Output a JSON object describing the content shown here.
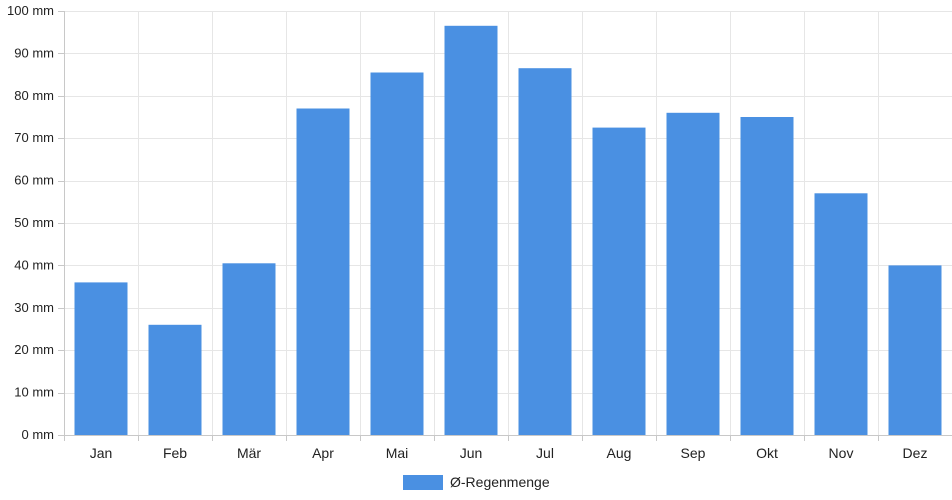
{
  "chart_data": {
    "type": "bar",
    "categories": [
      "Jan",
      "Feb",
      "Mär",
      "Apr",
      "Mai",
      "Jun",
      "Jul",
      "Aug",
      "Sep",
      "Okt",
      "Nov",
      "Dez"
    ],
    "series": [
      {
        "name": "Ø-Regenmenge",
        "color": "#4a90e2",
        "values": [
          36,
          26,
          40.5,
          77,
          85.5,
          96.5,
          86.5,
          72.5,
          76,
          75,
          57,
          40
        ]
      }
    ],
    "y_unit": "mm",
    "ylim": [
      0,
      100
    ],
    "yticks": [
      0,
      10,
      20,
      30,
      40,
      50,
      60,
      70,
      80,
      90,
      100
    ],
    "ytick_labels": [
      "0 mm",
      "10 mm",
      "20 mm",
      "30 mm",
      "40 mm",
      "50 mm",
      "60 mm",
      "70 mm",
      "80 mm",
      "90 mm",
      "100 mm"
    ],
    "grid": true,
    "legend_position": "bottom-center",
    "title": "",
    "xlabel": "",
    "ylabel": ""
  }
}
